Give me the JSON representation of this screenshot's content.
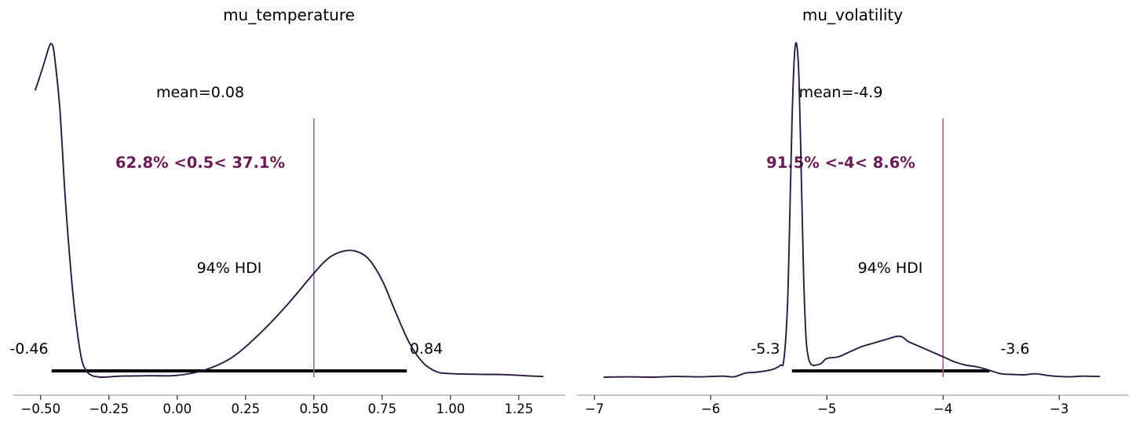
{
  "chart_data": [
    {
      "type": "density",
      "title": "mu_temperature",
      "xlim": [
        -0.6,
        1.42
      ],
      "x_ticks": [
        -0.5,
        -0.25,
        0.0,
        0.25,
        0.5,
        0.75,
        1.0,
        1.25
      ],
      "x_tick_labels": [
        "−0.50",
        "−0.25",
        "0.00",
        "0.25",
        "0.50",
        "0.75",
        "1.00",
        "1.25"
      ],
      "mean_label": "mean=0.08",
      "ref_value": 0.5,
      "ref_label": "62.8% <0.5< 37.1%",
      "hdi_label": "94% HDI",
      "hdi_low": -0.46,
      "hdi_high": 0.84,
      "hdi_low_label": "-0.46",
      "hdi_high_label": "0.84",
      "density_x": [
        -0.52,
        -0.49,
        -0.47,
        -0.46,
        -0.45,
        -0.43,
        -0.41,
        -0.39,
        -0.37,
        -0.35,
        -0.33,
        -0.31,
        -0.29,
        -0.27,
        -0.2,
        -0.1,
        0.0,
        0.1,
        0.2,
        0.3,
        0.4,
        0.5,
        0.55,
        0.6,
        0.65,
        0.7,
        0.75,
        0.8,
        0.85,
        0.9,
        0.95,
        1.0,
        1.1,
        1.2,
        1.3,
        1.34
      ],
      "density_y": [
        0.8,
        0.87,
        0.92,
        0.93,
        0.9,
        0.75,
        0.5,
        0.3,
        0.15,
        0.05,
        0.015,
        0.004,
        0.001,
        0.0,
        0.003,
        0.004,
        0.005,
        0.02,
        0.055,
        0.12,
        0.2,
        0.29,
        0.33,
        0.35,
        0.352,
        0.33,
        0.27,
        0.18,
        0.095,
        0.04,
        0.015,
        0.01,
        0.008,
        0.007,
        0.003,
        0.002
      ]
    },
    {
      "type": "density",
      "title": "mu_volatility",
      "xlim": [
        -7.15,
        -2.4
      ],
      "x_ticks": [
        -7,
        -6,
        -5,
        -4,
        -3
      ],
      "x_tick_labels": [
        "−7",
        "−6",
        "−5",
        "−4",
        "−3"
      ],
      "mean_label": "mean=-4.9",
      "ref_value": -4,
      "ref_label": "91.5% <-4< 8.6%",
      "hdi_label": "94% HDI",
      "hdi_low": -5.3,
      "hdi_high": -3.6,
      "hdi_low_label": "-5.3",
      "hdi_high_label": "-3.6",
      "density_x": [
        -6.92,
        -6.7,
        -6.5,
        -6.3,
        -6.1,
        -5.9,
        -5.8,
        -5.7,
        -5.6,
        -5.5,
        -5.45,
        -5.4,
        -5.37,
        -5.34,
        -5.32,
        -5.3,
        -5.28,
        -5.26,
        -5.24,
        -5.22,
        -5.2,
        -5.18,
        -5.16,
        -5.14,
        -5.12,
        -5.1,
        -5.05,
        -5.0,
        -4.9,
        -4.8,
        -4.7,
        -4.6,
        -4.5,
        -4.4,
        -4.35,
        -4.3,
        -4.2,
        -4.1,
        -4.0,
        -3.9,
        -3.8,
        -3.7,
        -3.6,
        -3.5,
        -3.4,
        -3.3,
        -3.2,
        -3.1,
        -3.0,
        -2.9,
        -2.8,
        -2.65
      ],
      "density_y": [
        0.0,
        0.001,
        0.0,
        0.002,
        0.001,
        0.003,
        0.001,
        0.012,
        0.015,
        0.02,
        0.025,
        0.035,
        0.05,
        0.2,
        0.45,
        0.75,
        0.94,
        0.98,
        0.88,
        0.6,
        0.3,
        0.12,
        0.06,
        0.04,
        0.035,
        0.035,
        0.04,
        0.055,
        0.06,
        0.075,
        0.09,
        0.1,
        0.11,
        0.12,
        0.118,
        0.105,
        0.09,
        0.075,
        0.06,
        0.045,
        0.035,
        0.03,
        0.02,
        0.01,
        0.008,
        0.007,
        0.01,
        0.005,
        0.002,
        0.001,
        0.003,
        0.002
      ]
    }
  ],
  "colors": {
    "kde": "#2a1a3f",
    "ref_line": "#99668f",
    "ref_text": "#6b1b54",
    "hdi_bar": "#000000",
    "axis": "#888888"
  }
}
